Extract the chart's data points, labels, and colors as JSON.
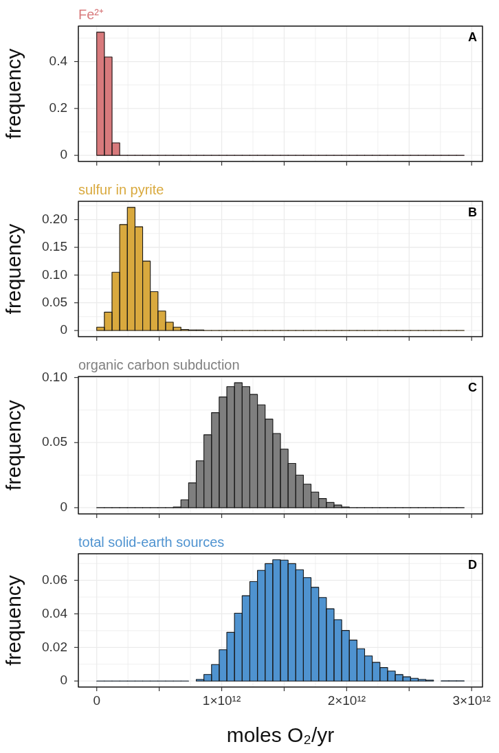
{
  "chart_data": [
    {
      "type": "histogram",
      "title": "Fe²⁺",
      "ylabel": "frequency",
      "color": "#d87a7c",
      "bins": [
        0,
        61250000000,
        122500000000,
        183750000000,
        245000000000,
        306250000000,
        367500000000,
        428750000000,
        490000000000,
        551250000000,
        612500000000,
        673750000000,
        735000000000,
        796250000000,
        857500000000,
        918750000000,
        980000000000,
        1041250000000,
        1102500000000,
        1163750000000,
        1225000000000,
        1286250000000,
        1347500000000,
        1408750000000,
        1470000000000,
        1531250000000,
        1592500000000,
        1653750000000,
        1715000000000,
        1776250000000,
        1837500000000,
        1898750000000,
        1960000000000,
        2021250000000,
        2082500000000,
        2143750000000,
        2205000000000,
        2266250000000,
        2327500000000,
        2388750000000,
        2450000000000,
        2511250000000,
        2572500000000,
        2633750000000,
        2695000000000,
        2756250000000,
        2817500000000,
        2878750000000,
        2940000000000
      ],
      "values": [
        0.525,
        0.419,
        0.053,
        0,
        0,
        0,
        0,
        0,
        0,
        0,
        0,
        0,
        0,
        0,
        0,
        0,
        0,
        0,
        0,
        0,
        0,
        0,
        0,
        0,
        0,
        0,
        0,
        0,
        0,
        0,
        0,
        0,
        0,
        0,
        0,
        0,
        0,
        0,
        0,
        0,
        0,
        0,
        0,
        0,
        0,
        0,
        0,
        0
      ],
      "xlim": [
        -147000000000,
        3087000000000
      ],
      "xticks": [
        {
          "value": 0,
          "label": null
        },
        {
          "value": 500000000000,
          "label": null
        },
        {
          "value": 1000000000000,
          "label": null
        },
        {
          "value": 1500000000000,
          "label": null
        },
        {
          "value": 2000000000000,
          "label": null
        },
        {
          "value": 2500000000000,
          "label": null
        },
        {
          "value": 3000000000000,
          "label": null
        }
      ],
      "ylim": [
        -0.026,
        0.551
      ],
      "yticks": [
        0,
        0.2,
        0.4
      ],
      "grid": true,
      "tick_labels": "y",
      "annotations": [
        "A"
      ]
    },
    {
      "type": "histogram",
      "title": "sulfur in pyrite",
      "ylabel": "frequency",
      "color": "#d9a93e",
      "bins": [
        0,
        61250000000,
        122500000000,
        183750000000,
        245000000000,
        306250000000,
        367500000000,
        428750000000,
        490000000000,
        551250000000,
        612500000000,
        673750000000,
        735000000000,
        796250000000,
        857500000000,
        918750000000,
        980000000000,
        1041250000000,
        1102500000000,
        1163750000000,
        1225000000000,
        1286250000000,
        1347500000000,
        1408750000000,
        1470000000000,
        1531250000000,
        1592500000000,
        1653750000000,
        1715000000000,
        1776250000000,
        1837500000000,
        1898750000000,
        1960000000000,
        2021250000000,
        2082500000000,
        2143750000000,
        2205000000000,
        2266250000000,
        2327500000000,
        2388750000000,
        2450000000000,
        2511250000000,
        2572500000000,
        2633750000000,
        2695000000000,
        2756250000000,
        2817500000000,
        2878750000000,
        2940000000000
      ],
      "values": [
        0.006,
        0.033,
        0.105,
        0.191,
        0.222,
        0.187,
        0.125,
        0.07,
        0.035,
        0.015,
        0.006,
        0.002,
        0.001,
        0.001,
        0,
        0,
        0,
        0,
        0,
        0,
        0,
        0,
        0,
        0,
        0,
        0,
        0,
        0,
        0,
        0,
        0,
        0,
        0,
        0,
        0,
        0,
        0,
        0,
        0,
        0,
        0,
        0,
        0,
        0,
        0,
        0,
        0,
        0
      ],
      "xlim": [
        -147000000000,
        3087000000000
      ],
      "xticks": [
        {
          "value": 0,
          "label": null
        },
        {
          "value": 500000000000,
          "label": null
        },
        {
          "value": 1000000000000,
          "label": null
        },
        {
          "value": 1500000000000,
          "label": null
        },
        {
          "value": 2000000000000,
          "label": null
        },
        {
          "value": 2500000000000,
          "label": null
        },
        {
          "value": 3000000000000,
          "label": null
        }
      ],
      "ylim": [
        -0.0111,
        0.233
      ],
      "yticks": [
        {
          "value": 0,
          "label": "0"
        },
        0.05,
        {
          "value": 0.1,
          "label": "0.10"
        },
        0.15,
        {
          "value": 0.2,
          "label": "0.20"
        }
      ],
      "grid": true,
      "tick_labels": "y",
      "annotations": [
        "B"
      ]
    },
    {
      "type": "histogram",
      "title": "organic carbon subduction",
      "ylabel": "frequency",
      "color": "#7f7f7f",
      "bins": [
        0,
        61250000000,
        122500000000,
        183750000000,
        245000000000,
        306250000000,
        367500000000,
        428750000000,
        490000000000,
        551250000000,
        612500000000,
        673750000000,
        735000000000,
        796250000000,
        857500000000,
        918750000000,
        980000000000,
        1041250000000,
        1102500000000,
        1163750000000,
        1225000000000,
        1286250000000,
        1347500000000,
        1408750000000,
        1470000000000,
        1531250000000,
        1592500000000,
        1653750000000,
        1715000000000,
        1776250000000,
        1837500000000,
        1898750000000,
        1960000000000,
        2021250000000,
        2082500000000,
        2143750000000,
        2205000000000,
        2266250000000,
        2327500000000,
        2388750000000,
        2450000000000,
        2511250000000,
        2572500000000,
        2633750000000,
        2695000000000,
        2756250000000,
        2817500000000,
        2878750000000,
        2940000000000
      ],
      "values": [
        0,
        0,
        0,
        0,
        0,
        0,
        0,
        0,
        0,
        0,
        0.0005,
        0.006,
        0.019,
        0.036,
        0.056,
        0.073,
        0.085,
        0.093,
        0.096,
        0.093,
        0.087,
        0.079,
        0.068,
        0.057,
        0.045,
        0.034,
        0.025,
        0.018,
        0.012,
        0.007,
        0.004,
        0.002,
        0.0005,
        0,
        0,
        0,
        0,
        0,
        0,
        0,
        0,
        0,
        0,
        0,
        0,
        0,
        0,
        0
      ],
      "xlim": [
        -147000000000,
        3087000000000
      ],
      "xticks": [
        {
          "value": 0,
          "label": null
        },
        {
          "value": 500000000000,
          "label": null
        },
        {
          "value": 1000000000000,
          "label": null
        },
        {
          "value": 1500000000000,
          "label": null
        },
        {
          "value": 2000000000000,
          "label": null
        },
        {
          "value": 2500000000000,
          "label": null
        },
        {
          "value": 3000000000000,
          "label": null
        }
      ],
      "ylim": [
        -0.0048,
        0.1008
      ],
      "yticks": [
        {
          "value": 0,
          "label": "0"
        },
        0.05,
        {
          "value": 0.1,
          "label": "0.10"
        }
      ],
      "grid": true,
      "tick_labels": "y",
      "annotations": [
        "C"
      ]
    },
    {
      "type": "histogram",
      "title": "total solid-earth sources",
      "xlabel": "moles O₂/yr",
      "ylabel": "frequency",
      "color": "#4f93d0",
      "bins": [
        0,
        61250000000,
        122500000000,
        183750000000,
        245000000000,
        306250000000,
        367500000000,
        428750000000,
        490000000000,
        551250000000,
        612500000000,
        673750000000,
        735000000000,
        796250000000,
        857500000000,
        918750000000,
        980000000000,
        1041250000000,
        1102500000000,
        1163750000000,
        1225000000000,
        1286250000000,
        1347500000000,
        1408750000000,
        1470000000000,
        1531250000000,
        1592500000000,
        1653750000000,
        1715000000000,
        1776250000000,
        1837500000000,
        1898750000000,
        1960000000000,
        2021250000000,
        2082500000000,
        2143750000000,
        2205000000000,
        2266250000000,
        2327500000000,
        2388750000000,
        2450000000000,
        2511250000000,
        2572500000000,
        2633750000000,
        2695000000000,
        2756250000000,
        2817500000000,
        2878750000000,
        2940000000000
      ],
      "values": [
        0,
        0,
        0,
        0,
        0,
        0,
        0,
        0,
        0,
        0,
        0,
        0,
        null,
        0.0009,
        0.0039,
        0.0098,
        0.0186,
        0.029,
        0.0404,
        0.0508,
        0.0592,
        0.0659,
        0.0699,
        0.0722,
        0.072,
        0.0699,
        0.0663,
        0.0616,
        0.0558,
        0.0497,
        0.043,
        0.0365,
        0.0301,
        0.0244,
        0.0192,
        0.0149,
        0.0111,
        0.008,
        0.0059,
        0.0038,
        0.0025,
        0.0016,
        0.0009,
        0.0005,
        null,
        0.0001,
        0.0001,
        0.0001
      ],
      "xlim": [
        -147000000000,
        3087000000000
      ],
      "xticks": [
        {
          "value": 0,
          "label": "0"
        },
        {
          "value": 500000000000,
          "label": null
        },
        {
          "value": 1000000000000,
          "label": "1×10¹²"
        },
        {
          "value": 1500000000000,
          "label": null
        },
        {
          "value": 2000000000000,
          "label": "2×10¹²"
        },
        {
          "value": 2500000000000,
          "label": null
        },
        {
          "value": 3000000000000,
          "label": "3×10¹²"
        }
      ],
      "ylim": [
        -0.0036,
        0.0758
      ],
      "yticks": [
        {
          "value": 0,
          "label": "0"
        },
        0.02,
        0.04,
        0.06
      ],
      "grid": true,
      "annotations": [
        "D"
      ]
    }
  ]
}
